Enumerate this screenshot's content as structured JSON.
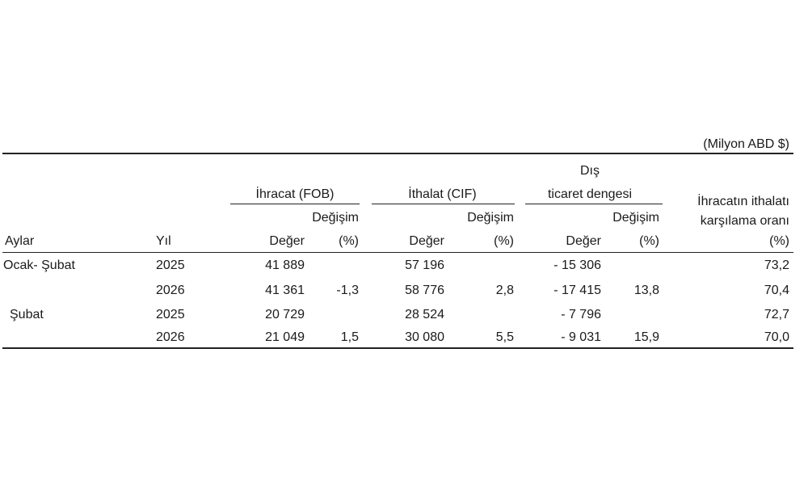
{
  "unit_note": "(Milyon ABD $)",
  "headers": {
    "ihracat": "İhracat (FOB)",
    "ithalat": "İthalat (CIF)",
    "dis_line1": "Dış",
    "dis_line2": "ticaret dengesi",
    "oran_line1": "İhracatın ithalatı",
    "oran_line2": "karşılama oranı",
    "oran_pct": "(%)",
    "degisim": "Değişim",
    "aylar": "Aylar",
    "yil": "Yıl",
    "deger": "Değer",
    "pct": "(%)"
  },
  "rows": [
    {
      "period": "Ocak- Şubat",
      "year": "2025",
      "ihr_val": "41 889",
      "ihr_chg": "",
      "ith_val": "57 196",
      "ith_chg": "",
      "dis_val": "- 15 306",
      "dis_chg": "",
      "oran": "73,2"
    },
    {
      "period": "",
      "year": "2026",
      "ihr_val": "41 361",
      "ihr_chg": "-1,3",
      "ith_val": "58 776",
      "ith_chg": "2,8",
      "dis_val": "- 17 415",
      "dis_chg": "13,8",
      "oran": "70,4"
    },
    {
      "period": "Şubat",
      "year": "2025",
      "ihr_val": "20 729",
      "ihr_chg": "",
      "ith_val": "28 524",
      "ith_chg": "",
      "dis_val": "- 7 796",
      "dis_chg": "",
      "oran": "72,7"
    },
    {
      "period": "",
      "year": "2026",
      "ihr_val": "21 049",
      "ihr_chg": "1,5",
      "ith_val": "30 080",
      "ith_chg": "5,5",
      "dis_val": "- 9 031",
      "dis_chg": "15,9",
      "oran": "70,0"
    }
  ]
}
